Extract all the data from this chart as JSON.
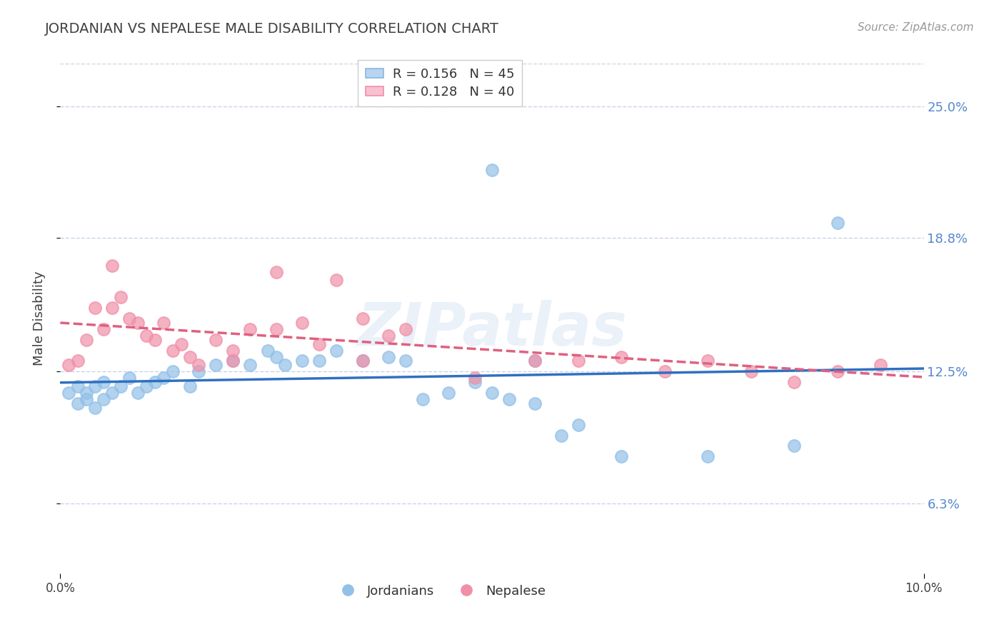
{
  "title": "JORDANIAN VS NEPALESE MALE DISABILITY CORRELATION CHART",
  "source": "Source: ZipAtlas.com",
  "ylabel": "Male Disability",
  "ytick_labels": [
    "6.3%",
    "12.5%",
    "18.8%",
    "25.0%"
  ],
  "ytick_values": [
    0.063,
    0.125,
    0.188,
    0.25
  ],
  "xlim": [
    0.0,
    0.1
  ],
  "ylim": [
    0.03,
    0.27
  ],
  "jordanian_color": "#92c0e8",
  "nepalese_color": "#f090a8",
  "jordanian_line_color": "#3070c0",
  "nepalese_line_color": "#e06080",
  "jordanians_x": [
    0.001,
    0.002,
    0.002,
    0.003,
    0.003,
    0.004,
    0.004,
    0.005,
    0.005,
    0.006,
    0.007,
    0.008,
    0.009,
    0.01,
    0.011,
    0.012,
    0.013,
    0.015,
    0.016,
    0.018,
    0.02,
    0.022,
    0.024,
    0.025,
    0.026,
    0.028,
    0.03,
    0.032,
    0.035,
    0.038,
    0.04,
    0.042,
    0.045,
    0.048,
    0.05,
    0.052,
    0.055,
    0.058,
    0.06,
    0.065,
    0.05,
    0.055,
    0.075,
    0.085,
    0.09
  ],
  "jordanians_y": [
    0.115,
    0.11,
    0.118,
    0.115,
    0.112,
    0.118,
    0.108,
    0.112,
    0.12,
    0.115,
    0.118,
    0.122,
    0.115,
    0.118,
    0.12,
    0.122,
    0.125,
    0.118,
    0.125,
    0.128,
    0.13,
    0.128,
    0.135,
    0.132,
    0.128,
    0.13,
    0.13,
    0.135,
    0.13,
    0.132,
    0.13,
    0.112,
    0.115,
    0.12,
    0.115,
    0.112,
    0.11,
    0.095,
    0.1,
    0.085,
    0.22,
    0.13,
    0.085,
    0.09,
    0.195
  ],
  "nepalese_x": [
    0.001,
    0.002,
    0.003,
    0.004,
    0.005,
    0.006,
    0.006,
    0.007,
    0.008,
    0.009,
    0.01,
    0.011,
    0.012,
    0.013,
    0.014,
    0.015,
    0.016,
    0.018,
    0.02,
    0.022,
    0.025,
    0.028,
    0.032,
    0.035,
    0.038,
    0.02,
    0.025,
    0.03,
    0.035,
    0.04,
    0.048,
    0.055,
    0.06,
    0.065,
    0.07,
    0.075,
    0.08,
    0.085,
    0.09,
    0.095
  ],
  "nepalese_y": [
    0.128,
    0.13,
    0.14,
    0.155,
    0.145,
    0.175,
    0.155,
    0.16,
    0.15,
    0.148,
    0.142,
    0.14,
    0.148,
    0.135,
    0.138,
    0.132,
    0.128,
    0.14,
    0.135,
    0.145,
    0.172,
    0.148,
    0.168,
    0.15,
    0.142,
    0.13,
    0.145,
    0.138,
    0.13,
    0.145,
    0.122,
    0.13,
    0.13,
    0.132,
    0.125,
    0.13,
    0.125,
    0.12,
    0.125,
    0.128
  ],
  "r_jordanian": 0.156,
  "r_nepalese": 0.128,
  "n_jordanian": 45,
  "n_nepalese": 40,
  "background_color": "#ffffff",
  "grid_color": "#c8d4e8",
  "text_color": "#404040",
  "title_color": "#404040",
  "tick_color": "#5588cc"
}
